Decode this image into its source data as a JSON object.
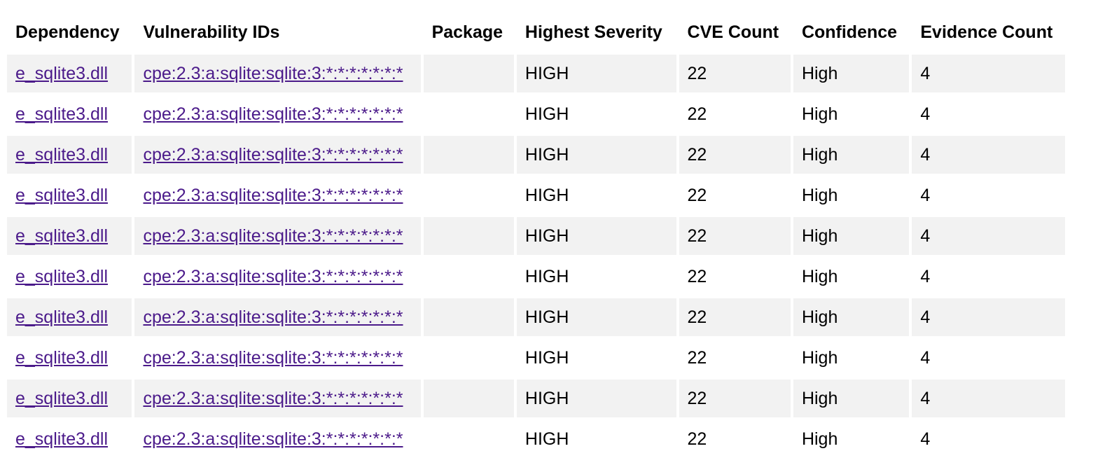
{
  "table": {
    "headers": {
      "dependency": "Dependency",
      "vulnerability_ids": "Vulnerability IDs",
      "package": "Package",
      "highest_severity": "Highest Severity",
      "cve_count": "CVE Count",
      "confidence": "Confidence",
      "evidence_count": "Evidence Count"
    },
    "rows": [
      {
        "dependency": "e_sqlite3.dll",
        "vulnerability_id": "cpe:2.3:a:sqlite:sqlite:3:*:*:*:*:*:*:*",
        "package": "",
        "highest_severity": "HIGH",
        "cve_count": "22",
        "confidence": "High",
        "evidence_count": "4"
      },
      {
        "dependency": "e_sqlite3.dll",
        "vulnerability_id": "cpe:2.3:a:sqlite:sqlite:3:*:*:*:*:*:*:*",
        "package": "",
        "highest_severity": "HIGH",
        "cve_count": "22",
        "confidence": "High",
        "evidence_count": "4"
      },
      {
        "dependency": "e_sqlite3.dll",
        "vulnerability_id": "cpe:2.3:a:sqlite:sqlite:3:*:*:*:*:*:*:*",
        "package": "",
        "highest_severity": "HIGH",
        "cve_count": "22",
        "confidence": "High",
        "evidence_count": "4"
      },
      {
        "dependency": "e_sqlite3.dll",
        "vulnerability_id": "cpe:2.3:a:sqlite:sqlite:3:*:*:*:*:*:*:*",
        "package": "",
        "highest_severity": "HIGH",
        "cve_count": "22",
        "confidence": "High",
        "evidence_count": "4"
      },
      {
        "dependency": "e_sqlite3.dll",
        "vulnerability_id": "cpe:2.3:a:sqlite:sqlite:3:*:*:*:*:*:*:*",
        "package": "",
        "highest_severity": "HIGH",
        "cve_count": "22",
        "confidence": "High",
        "evidence_count": "4"
      },
      {
        "dependency": "e_sqlite3.dll",
        "vulnerability_id": "cpe:2.3:a:sqlite:sqlite:3:*:*:*:*:*:*:*",
        "package": "",
        "highest_severity": "HIGH",
        "cve_count": "22",
        "confidence": "High",
        "evidence_count": "4"
      },
      {
        "dependency": "e_sqlite3.dll",
        "vulnerability_id": "cpe:2.3:a:sqlite:sqlite:3:*:*:*:*:*:*:*",
        "package": "",
        "highest_severity": "HIGH",
        "cve_count": "22",
        "confidence": "High",
        "evidence_count": "4"
      },
      {
        "dependency": "e_sqlite3.dll",
        "vulnerability_id": "cpe:2.3:a:sqlite:sqlite:3:*:*:*:*:*:*:*",
        "package": "",
        "highest_severity": "HIGH",
        "cve_count": "22",
        "confidence": "High",
        "evidence_count": "4"
      },
      {
        "dependency": "e_sqlite3.dll",
        "vulnerability_id": "cpe:2.3:a:sqlite:sqlite:3:*:*:*:*:*:*:*",
        "package": "",
        "highest_severity": "HIGH",
        "cve_count": "22",
        "confidence": "High",
        "evidence_count": "4"
      },
      {
        "dependency": "e_sqlite3.dll",
        "vulnerability_id": "cpe:2.3:a:sqlite:sqlite:3:*:*:*:*:*:*:*",
        "package": "",
        "highest_severity": "HIGH",
        "cve_count": "22",
        "confidence": "High",
        "evidence_count": "4"
      }
    ]
  },
  "colors": {
    "link": "#4b1a8a",
    "row_stripe": "#f2f2f2",
    "background": "#ffffff"
  }
}
